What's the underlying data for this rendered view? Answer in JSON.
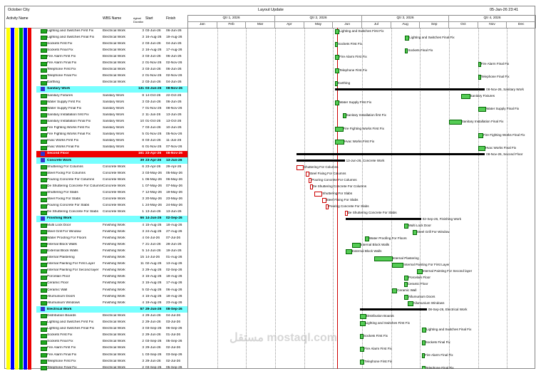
{
  "app": {
    "project": "October City",
    "layout": "Layout Update",
    "data_date": "05-Jan-26 23:41",
    "expand": "+"
  },
  "columns": {
    "activity_name": "Activity Name",
    "wbs_name": "WBS Name",
    "orig_dur": "riginal Duration",
    "start": "Start",
    "finish": "Finish"
  },
  "quarters": [
    "Qtr 1, 2026",
    "Qtr 2, 2026",
    "Qtr 3, 2026",
    "Qtr 4, 2026"
  ],
  "months": [
    "Jan",
    "Feb",
    "Mar",
    "Apr",
    "May",
    "Jun",
    "Jul",
    "Aug",
    "Sep",
    "Oct",
    "Nov",
    "Dec"
  ],
  "rows": [
    {
      "t": "a",
      "name": "Lighting and Switches First Fix",
      "wbs": "Electrical Work",
      "d": "3",
      "s": "03-Jun-26",
      "f": "06-Jun-26"
    },
    {
      "t": "a",
      "name": "Lighting and Switches Final Fix",
      "wbs": "Electrical Work",
      "d": "3",
      "s": "16-Aug-26",
      "f": "19-Aug-26"
    },
    {
      "t": "a",
      "name": "Sockets First Fix",
      "wbs": "Electrical Work",
      "d": "2",
      "s": "03-Jun-26",
      "f": "04-Jun-26"
    },
    {
      "t": "a",
      "name": "Sockets Final Fix",
      "wbs": "Electrical Work",
      "d": "2",
      "s": "16-Aug-26",
      "f": "17-Aug-26"
    },
    {
      "t": "a",
      "name": "Fire Alarm First Fix",
      "wbs": "Electrical Work",
      "d": "3",
      "s": "03-Jun-26",
      "f": "06-Jun-26"
    },
    {
      "t": "a",
      "name": "Fire Alarm Final Fix",
      "wbs": "Electrical Work",
      "d": "2",
      "s": "01-Nov-26",
      "f": "02-Nov-26"
    },
    {
      "t": "a",
      "name": "Telephone First Fix",
      "wbs": "Electrical Work",
      "d": "3",
      "s": "03-Jun-26",
      "f": "06-Jun-26"
    },
    {
      "t": "a",
      "name": "Telephone Final Fix",
      "wbs": "Electrical Work",
      "d": "2",
      "s": "01-Nov-26",
      "f": "02-Nov-26"
    },
    {
      "t": "a",
      "name": "Earthing",
      "wbs": "Electrical Work",
      "d": "2",
      "s": "03-Jun-26",
      "f": "04-Jun-26"
    },
    {
      "t": "w",
      "name": "Sanitary Work",
      "wbs": "",
      "d": "131",
      "s": "03-Jun-26",
      "f": "08-Nov-26"
    },
    {
      "t": "a",
      "name": "Sanitary Fixtures",
      "wbs": "Sanitary Work",
      "d": "8",
      "s": "14-Oct-26",
      "f": "22-Oct-26"
    },
    {
      "t": "a",
      "name": "Water Supply First Fix",
      "wbs": "Sanitary Work",
      "d": "3",
      "s": "03-Jun-26",
      "f": "06-Jun-26"
    },
    {
      "t": "a",
      "name": "Water Supply Final Fix",
      "wbs": "Sanitary Work",
      "d": "7",
      "s": "01-Nov-26",
      "f": "08-Nov-26"
    },
    {
      "t": "a",
      "name": "Sanitary Installation first Fix",
      "wbs": "Sanitary Work",
      "d": "2",
      "s": "11-Jun-26",
      "f": "13-Jun-26"
    },
    {
      "t": "a",
      "name": "Sanitary Installation Final Fix",
      "wbs": "Sanitary Work",
      "d": "10",
      "s": "01-Oct-26",
      "f": "13-Oct-26"
    },
    {
      "t": "a",
      "name": "Fire Fighting Works First Fix",
      "wbs": "Sanitary Work",
      "d": "7",
      "s": "03-Jun-26",
      "f": "10-Jun-26"
    },
    {
      "t": "a",
      "name": "Fire Fighting Works Final Fix",
      "wbs": "Sanitary Work",
      "d": "5",
      "s": "01-Nov-26",
      "f": "05-Nov-26"
    },
    {
      "t": "a",
      "name": "Hvac Works First Fix",
      "wbs": "Sanitary Work",
      "d": "8",
      "s": "03-Jun-26",
      "f": "11-Jun-26"
    },
    {
      "t": "a",
      "name": "Hvac Works Final Fix",
      "wbs": "Sanitary Work",
      "d": "6",
      "s": "01-Nov-26",
      "f": "07-Nov-26"
    },
    {
      "t": "s",
      "name": "Second Floor",
      "wbs": "",
      "d": "161",
      "s": "23-Apr-26",
      "f": "08-Nov-26"
    },
    {
      "t": "w",
      "name": "Concrete Work",
      "wbs": "",
      "d": "39",
      "s": "23-Apr-26",
      "f": "13-Jun-26"
    },
    {
      "t": "a",
      "name": "Shuttering For Columns",
      "wbs": "Concrete Work",
      "d": "6",
      "s": "23-Apr-26",
      "f": "29-Apr-26"
    },
    {
      "t": "a",
      "name": "Steel Fixing For Columns",
      "wbs": "Concrete Work",
      "d": "3",
      "s": "03-May-26",
      "f": "05-May-26"
    },
    {
      "t": "a",
      "name": "Pouring Concrete For Columns",
      "wbs": "Concrete Work",
      "d": "1",
      "s": "06-May-26",
      "f": "06-May-26"
    },
    {
      "t": "a",
      "name": "De Shuttering Concrete For Columns",
      "wbs": "Concrete Work",
      "d": "1",
      "s": "07-May-26",
      "f": "07-May-26"
    },
    {
      "t": "a",
      "name": "Shuttering For Slabs",
      "wbs": "Concrete Work",
      "d": "7",
      "s": "12-May-26",
      "f": "19-May-26"
    },
    {
      "t": "a",
      "name": "Steel Fixing For Slabs",
      "wbs": "Concrete Work",
      "d": "3",
      "s": "20-May-26",
      "f": "23-May-26"
    },
    {
      "t": "a",
      "name": "Pouring Concrete For Slabs",
      "wbs": "Concrete Work",
      "d": "1",
      "s": "24-May-26",
      "f": "24-May-26"
    },
    {
      "t": "a",
      "name": "De Shuttering Concrete For Slabs",
      "wbs": "Concrete Work",
      "d": "1",
      "s": "13-Jun-26",
      "f": "13-Jun-26"
    },
    {
      "t": "w",
      "name": "Finishing Work",
      "wbs": "",
      "d": "66",
      "s": "14-Jun-26",
      "f": "02-Sep-26"
    },
    {
      "t": "a",
      "name": "Multi Lock Door",
      "wbs": "Finishing Work",
      "d": "4",
      "s": "15-Aug-26",
      "f": "18-Aug-26"
    },
    {
      "t": "a",
      "name": "Steel Grill For Window",
      "wbs": "Finishing Work",
      "d": "3",
      "s": "24-Aug-26",
      "f": "27-Aug-26"
    },
    {
      "t": "a",
      "name": "Water Proofing For Floors",
      "wbs": "Finishing Work",
      "d": "4",
      "s": "04-Jul-26",
      "f": "07-Jul-26"
    },
    {
      "t": "a",
      "name": "Internal Block Walls",
      "wbs": "Finishing Work",
      "d": "7",
      "s": "21-Jun-26",
      "f": "28-Jun-26"
    },
    {
      "t": "a",
      "name": "External Block Walls",
      "wbs": "Finishing Work",
      "d": "5",
      "s": "14-Jun-26",
      "f": "19-Jun-26"
    },
    {
      "t": "a",
      "name": "Internal Plastering",
      "wbs": "Finishing Work",
      "d": "15",
      "s": "14-Jul-26",
      "f": "01-Aug-26"
    },
    {
      "t": "a",
      "name": "Internal Painting For First Layer",
      "wbs": "Finishing Work",
      "d": "11",
      "s": "02-Aug-26",
      "f": "13-Aug-26"
    },
    {
      "t": "a",
      "name": "Internal Painting For Second layer",
      "wbs": "Finishing Work",
      "d": "3",
      "s": "29-Aug-26",
      "f": "02-Sep-26"
    },
    {
      "t": "a",
      "name": "Porcelain Floor",
      "wbs": "Finishing Work",
      "d": "3",
      "s": "15-Aug-26",
      "f": "18-Aug-26"
    },
    {
      "t": "a",
      "name": "Ceramic Floor",
      "wbs": "Finishing Work",
      "d": "3",
      "s": "15-Aug-26",
      "f": "17-Aug-26"
    },
    {
      "t": "a",
      "name": "Ceramic Wall",
      "wbs": "Finishing Work",
      "d": "5",
      "s": "02-Aug-26",
      "f": "06-Aug-26"
    },
    {
      "t": "a",
      "name": "Allumunium Doors",
      "wbs": "Finishing Work",
      "d": "4",
      "s": "15-Aug-26",
      "f": "18-Aug-26"
    },
    {
      "t": "a",
      "name": "Allumunium Windows",
      "wbs": "Finishing Work",
      "d": "4",
      "s": "19-Aug-26",
      "f": "23-Aug-26"
    },
    {
      "t": "w",
      "name": "Electrical Work",
      "wbs": "",
      "d": "57",
      "s": "29-Jun-26",
      "f": "08-Sep-26"
    },
    {
      "t": "a",
      "name": "Distribution Boards",
      "wbs": "Electrical Work",
      "d": "4",
      "s": "29-Jun-26",
      "f": "04-Jul-26"
    },
    {
      "t": "a",
      "name": "Lighting and Switches First Fix",
      "wbs": "Electrical Work",
      "d": "2",
      "s": "29-Jun-26",
      "f": "03-Jul-26"
    },
    {
      "t": "a",
      "name": "Lighting and Switches Final Fix",
      "wbs": "Electrical Work",
      "d": "3",
      "s": "03-Sep-26",
      "f": "06-Sep-26"
    },
    {
      "t": "a",
      "name": "Sockets First Fix",
      "wbs": "Electrical Work",
      "d": "2",
      "s": "29-Jun-26",
      "f": "01-Jul-26"
    },
    {
      "t": "a",
      "name": "Sockets Final Fix",
      "wbs": "Electrical Work",
      "d": "2",
      "s": "03-Sep-26",
      "f": "05-Sep-26"
    },
    {
      "t": "a",
      "name": "Fire Alarm First Fix",
      "wbs": "Electrical Work",
      "d": "3",
      "s": "29-Jun-26",
      "f": "02-Jul-26"
    },
    {
      "t": "a",
      "name": "Fire Alarm Final Fix",
      "wbs": "Electrical Work",
      "d": "1",
      "s": "03-Sep-26",
      "f": "03-Sep-26"
    },
    {
      "t": "a",
      "name": "Telephone First Fix",
      "wbs": "Electrical Work",
      "d": "3",
      "s": "29-Jun-26",
      "f": "02-Jul-26"
    },
    {
      "t": "a",
      "name": "Telephone Final Fix",
      "wbs": "Electrical Work",
      "d": "2",
      "s": "03-Sep-26",
      "f": "05-Sep-26"
    }
  ],
  "summary_labels": {
    "sanitary": "08-Nov-26, Sanitary Work",
    "second_floor": "08-Nov-26, Second Floor",
    "concrete": "13-Jun-26, Concrete Work",
    "finishing": "02-Sep-26, Finishing Work",
    "electrical": "08-Sep-26, Electrical Work"
  },
  "colors": {
    "wbs_band": "#7fffff",
    "section_band": "#e00000",
    "bar": "#55cc55",
    "summary": "#000000",
    "critical": "#cc0000",
    "today": "#cc0000"
  },
  "watermark": "مستقل mostaql.com"
}
